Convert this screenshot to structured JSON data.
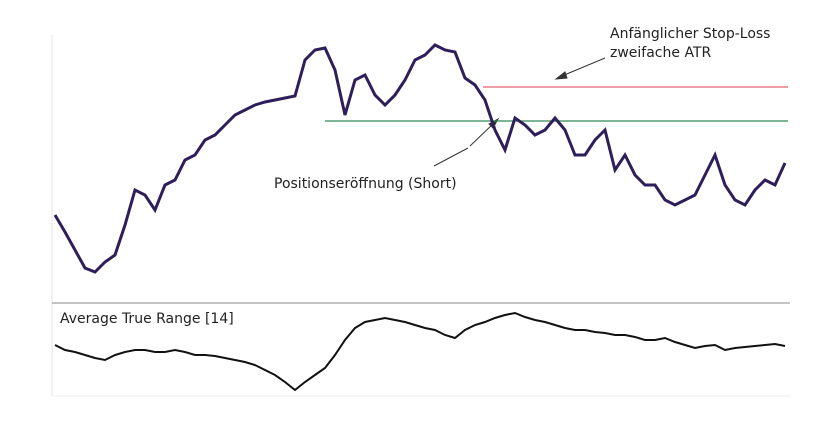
{
  "chart_data": [
    {
      "type": "line",
      "values": [
        85,
        68,
        50,
        32,
        28,
        38,
        45,
        75,
        110,
        105,
        90,
        115,
        120,
        140,
        145,
        160,
        165,
        175,
        185,
        190,
        195,
        198,
        200,
        202,
        204,
        240,
        250,
        252,
        230,
        185,
        220,
        225,
        205,
        195,
        205,
        220,
        240,
        245,
        255,
        250,
        248,
        222,
        215,
        200,
        170,
        150,
        182,
        175,
        165,
        170,
        182,
        170,
        145,
        145,
        160,
        170,
        130,
        145,
        125,
        115,
        115,
        100,
        95,
        100,
        105,
        125,
        145,
        115,
        100,
        95,
        110,
        120,
        115,
        137
      ],
      "color": "#2e1f5a",
      "ylim": [
        0,
        265
      ],
      "levels": [
        {
          "value": 213,
          "color": "#e0606e"
        },
        {
          "value": 179,
          "color": "#2e8b57"
        }
      ],
      "annotations": [
        {
          "lines": [
            "Anfänglicher Stop-Loss",
            "zweifache ATR"
          ]
        },
        {
          "lines": [
            "Positionseröffnung (Short)"
          ]
        }
      ]
    },
    {
      "type": "line",
      "title": "Average True Range [14]",
      "values": [
        55,
        50,
        48,
        45,
        42,
        40,
        45,
        48,
        50,
        50,
        48,
        48,
        50,
        48,
        45,
        45,
        44,
        42,
        40,
        38,
        35,
        30,
        25,
        18,
        10,
        18,
        25,
        32,
        45,
        60,
        72,
        78,
        80,
        82,
        80,
        78,
        75,
        72,
        70,
        65,
        62,
        70,
        75,
        78,
        82,
        85,
        87,
        83,
        80,
        78,
        75,
        72,
        70,
        70,
        68,
        67,
        65,
        65,
        63,
        60,
        60,
        62,
        58,
        55,
        52,
        54,
        55,
        50,
        52,
        53,
        54,
        55,
        56,
        54
      ],
      "color": "#111111",
      "ylim": [
        0,
        97
      ]
    }
  ]
}
